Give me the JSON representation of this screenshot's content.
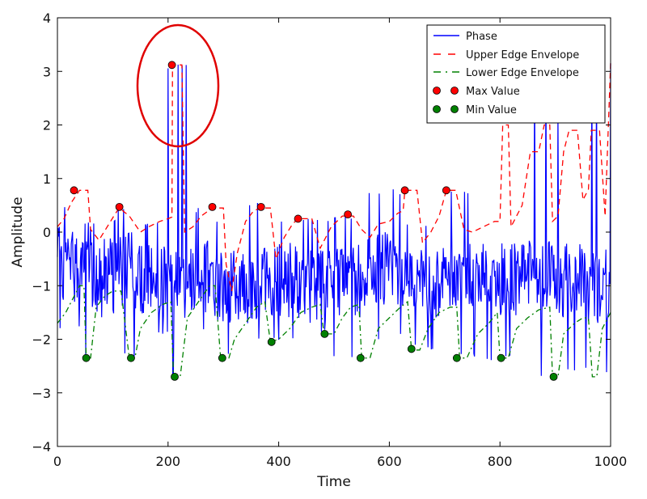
{
  "chart_data": {
    "type": "line",
    "title": "",
    "xlabel": "Time",
    "ylabel": "Amplitude",
    "xlim": [
      0,
      1000
    ],
    "ylim": [
      -4,
      4
    ],
    "xticks": [
      0,
      200,
      400,
      600,
      800,
      1000
    ],
    "yticks": [
      -4,
      -3,
      -2,
      -1,
      0,
      1,
      2,
      3,
      4
    ],
    "grid": false,
    "legend_position": "top-right",
    "colors": {
      "phase": "#0000ff",
      "upper": "#ff0000",
      "lower": "#008000",
      "max_marker": "#ff0000",
      "min_marker": "#008000",
      "annotation": "#e00000"
    },
    "series": [
      {
        "name": "Phase",
        "style": "solid-line",
        "segments": [
          {
            "x0": 0,
            "x1": 50,
            "lo": -1.8,
            "hi": 0.5,
            "base": -0.6
          },
          {
            "x0": 50,
            "x1": 62,
            "lo": -2.3,
            "hi": 0.78,
            "base": -0.4
          },
          {
            "x0": 62,
            "x1": 110,
            "lo": -1.6,
            "hi": 0.25,
            "base": -0.8
          },
          {
            "x0": 110,
            "x1": 140,
            "lo": -2.35,
            "hi": 0.45,
            "base": -0.7
          },
          {
            "x0": 140,
            "x1": 200,
            "lo": -1.9,
            "hi": 0.2,
            "base": -0.9
          },
          {
            "x0": 200,
            "x1": 240,
            "lo": -2.7,
            "hi": 3.15,
            "base": -0.9
          },
          {
            "x0": 240,
            "x1": 280,
            "lo": -1.9,
            "hi": 0.45,
            "base": -0.8
          },
          {
            "x0": 280,
            "x1": 320,
            "lo": -2.35,
            "hi": 0.2,
            "base": -1.0
          },
          {
            "x0": 320,
            "x1": 370,
            "lo": -2.0,
            "hi": 0.55,
            "base": -1.1
          },
          {
            "x0": 370,
            "x1": 440,
            "lo": -2.05,
            "hi": 0.25,
            "base": -0.9
          },
          {
            "x0": 440,
            "x1": 500,
            "lo": -1.9,
            "hi": 0.3,
            "base": -1.0
          },
          {
            "x0": 500,
            "x1": 560,
            "lo": -2.35,
            "hi": 0.3,
            "base": -0.9
          },
          {
            "x0": 560,
            "x1": 630,
            "lo": -2.0,
            "hi": 0.8,
            "base": -0.7
          },
          {
            "x0": 630,
            "x1": 700,
            "lo": -2.2,
            "hi": 0.2,
            "base": -0.9
          },
          {
            "x0": 700,
            "x1": 760,
            "lo": -2.35,
            "hi": 0.78,
            "base": -0.8
          },
          {
            "x0": 760,
            "x1": 830,
            "lo": -2.4,
            "hi": 3.15,
            "base": -0.9
          },
          {
            "x0": 830,
            "x1": 900,
            "lo": -2.7,
            "hi": 3.15,
            "base": -0.8
          },
          {
            "x0": 900,
            "x1": 960,
            "lo": -2.6,
            "hi": 2.3,
            "base": -0.9
          },
          {
            "x0": 960,
            "x1": 1000,
            "lo": -2.7,
            "hi": 3.15,
            "base": -1.0
          }
        ]
      },
      {
        "name": "Upper Edge Envelope",
        "style": "dashed",
        "points": [
          [
            0,
            0.1
          ],
          [
            12,
            0.25
          ],
          [
            25,
            0.55
          ],
          [
            40,
            0.78
          ],
          [
            55,
            0.78
          ],
          [
            60,
            0.05
          ],
          [
            75,
            -0.15
          ],
          [
            90,
            0.1
          ],
          [
            105,
            0.35
          ],
          [
            112,
            0.45
          ],
          [
            130,
            0.3
          ],
          [
            150,
            0.0
          ],
          [
            165,
            0.1
          ],
          [
            185,
            0.2
          ],
          [
            200,
            0.25
          ],
          [
            207,
            0.28
          ],
          [
            208,
            3.12
          ],
          [
            225,
            3.12
          ],
          [
            230,
            0.0
          ],
          [
            245,
            0.1
          ],
          [
            260,
            0.3
          ],
          [
            280,
            0.45
          ],
          [
            300,
            0.45
          ],
          [
            305,
            -0.6
          ],
          [
            315,
            -1.1
          ],
          [
            325,
            -0.4
          ],
          [
            340,
            0.2
          ],
          [
            355,
            0.4
          ],
          [
            368,
            0.45
          ],
          [
            385,
            0.45
          ],
          [
            395,
            -0.5
          ],
          [
            410,
            -0.1
          ],
          [
            425,
            0.15
          ],
          [
            435,
            0.25
          ],
          [
            460,
            0.25
          ],
          [
            475,
            -0.3
          ],
          [
            495,
            0.1
          ],
          [
            515,
            0.3
          ],
          [
            535,
            0.3
          ],
          [
            550,
            0.05
          ],
          [
            565,
            -0.1
          ],
          [
            580,
            0.15
          ],
          [
            600,
            0.2
          ],
          [
            615,
            0.35
          ],
          [
            625,
            0.4
          ],
          [
            628,
            0.78
          ],
          [
            650,
            0.78
          ],
          [
            660,
            -0.2
          ],
          [
            675,
            0.0
          ],
          [
            690,
            0.3
          ],
          [
            703,
            0.78
          ],
          [
            720,
            0.78
          ],
          [
            735,
            0.05
          ],
          [
            750,
            0.0
          ],
          [
            770,
            0.1
          ],
          [
            790,
            0.2
          ],
          [
            800,
            0.2
          ],
          [
            805,
            2.0
          ],
          [
            815,
            2.0
          ],
          [
            820,
            0.1
          ],
          [
            830,
            0.3
          ],
          [
            840,
            0.5
          ],
          [
            855,
            1.5
          ],
          [
            870,
            1.5
          ],
          [
            880,
            2.0
          ],
          [
            890,
            2.0
          ],
          [
            895,
            0.2
          ],
          [
            905,
            0.3
          ],
          [
            915,
            1.5
          ],
          [
            925,
            1.9
          ],
          [
            940,
            1.9
          ],
          [
            950,
            0.6
          ],
          [
            960,
            0.8
          ],
          [
            965,
            1.9
          ],
          [
            980,
            1.9
          ],
          [
            990,
            0.3
          ],
          [
            1000,
            3.15
          ]
        ]
      },
      {
        "name": "Lower Edge Envelope",
        "style": "dashdot",
        "points": [
          [
            0,
            -1.7
          ],
          [
            15,
            -1.5
          ],
          [
            25,
            -1.3
          ],
          [
            40,
            -1.0
          ],
          [
            48,
            -1.0
          ],
          [
            52,
            -2.35
          ],
          [
            60,
            -2.35
          ],
          [
            70,
            -1.4
          ],
          [
            85,
            -1.2
          ],
          [
            100,
            -1.1
          ],
          [
            115,
            -1.1
          ],
          [
            130,
            -2.35
          ],
          [
            140,
            -2.35
          ],
          [
            150,
            -1.8
          ],
          [
            170,
            -1.5
          ],
          [
            190,
            -1.35
          ],
          [
            205,
            -1.3
          ],
          [
            210,
            -2.7
          ],
          [
            222,
            -2.7
          ],
          [
            235,
            -1.6
          ],
          [
            255,
            -1.3
          ],
          [
            275,
            -1.0
          ],
          [
            285,
            -1.0
          ],
          [
            295,
            -2.35
          ],
          [
            310,
            -2.35
          ],
          [
            320,
            -2.0
          ],
          [
            340,
            -1.7
          ],
          [
            360,
            -1.4
          ],
          [
            375,
            -1.3
          ],
          [
            385,
            -2.05
          ],
          [
            400,
            -2.0
          ],
          [
            420,
            -1.8
          ],
          [
            440,
            -1.5
          ],
          [
            460,
            -1.4
          ],
          [
            475,
            -1.35
          ],
          [
            482,
            -1.9
          ],
          [
            500,
            -1.9
          ],
          [
            515,
            -1.6
          ],
          [
            530,
            -1.4
          ],
          [
            545,
            -1.35
          ],
          [
            550,
            -2.35
          ],
          [
            565,
            -2.35
          ],
          [
            580,
            -1.8
          ],
          [
            600,
            -1.6
          ],
          [
            620,
            -1.4
          ],
          [
            633,
            -1.3
          ],
          [
            640,
            -2.2
          ],
          [
            655,
            -2.2
          ],
          [
            670,
            -1.8
          ],
          [
            690,
            -1.5
          ],
          [
            710,
            -1.4
          ],
          [
            722,
            -1.4
          ],
          [
            727,
            -2.35
          ],
          [
            740,
            -2.35
          ],
          [
            760,
            -1.9
          ],
          [
            780,
            -1.7
          ],
          [
            795,
            -1.5
          ],
          [
            800,
            -2.35
          ],
          [
            815,
            -2.35
          ],
          [
            830,
            -1.8
          ],
          [
            850,
            -1.6
          ],
          [
            870,
            -1.45
          ],
          [
            890,
            -1.4
          ],
          [
            895,
            -2.7
          ],
          [
            905,
            -2.7
          ],
          [
            915,
            -1.9
          ],
          [
            935,
            -1.7
          ],
          [
            950,
            -1.6
          ],
          [
            960,
            -1.6
          ],
          [
            967,
            -2.7
          ],
          [
            975,
            -2.7
          ],
          [
            985,
            -1.8
          ],
          [
            1000,
            -1.5
          ]
        ]
      },
      {
        "name": "Max Value",
        "style": "marker",
        "points": [
          [
            30,
            0.78
          ],
          [
            112,
            0.47
          ],
          [
            207,
            3.12
          ],
          [
            280,
            0.47
          ],
          [
            368,
            0.47
          ],
          [
            435,
            0.25
          ],
          [
            525,
            0.33
          ],
          [
            628,
            0.78
          ],
          [
            703,
            0.78
          ]
        ]
      },
      {
        "name": "Min Value",
        "style": "marker",
        "points": [
          [
            52,
            -2.35
          ],
          [
            133,
            -2.35
          ],
          [
            212,
            -2.7
          ],
          [
            298,
            -2.35
          ],
          [
            387,
            -2.05
          ],
          [
            483,
            -1.9
          ],
          [
            548,
            -2.35
          ],
          [
            640,
            -2.18
          ],
          [
            722,
            -2.35
          ],
          [
            802,
            -2.35
          ],
          [
            897,
            -2.7
          ]
        ]
      }
    ]
  }
}
